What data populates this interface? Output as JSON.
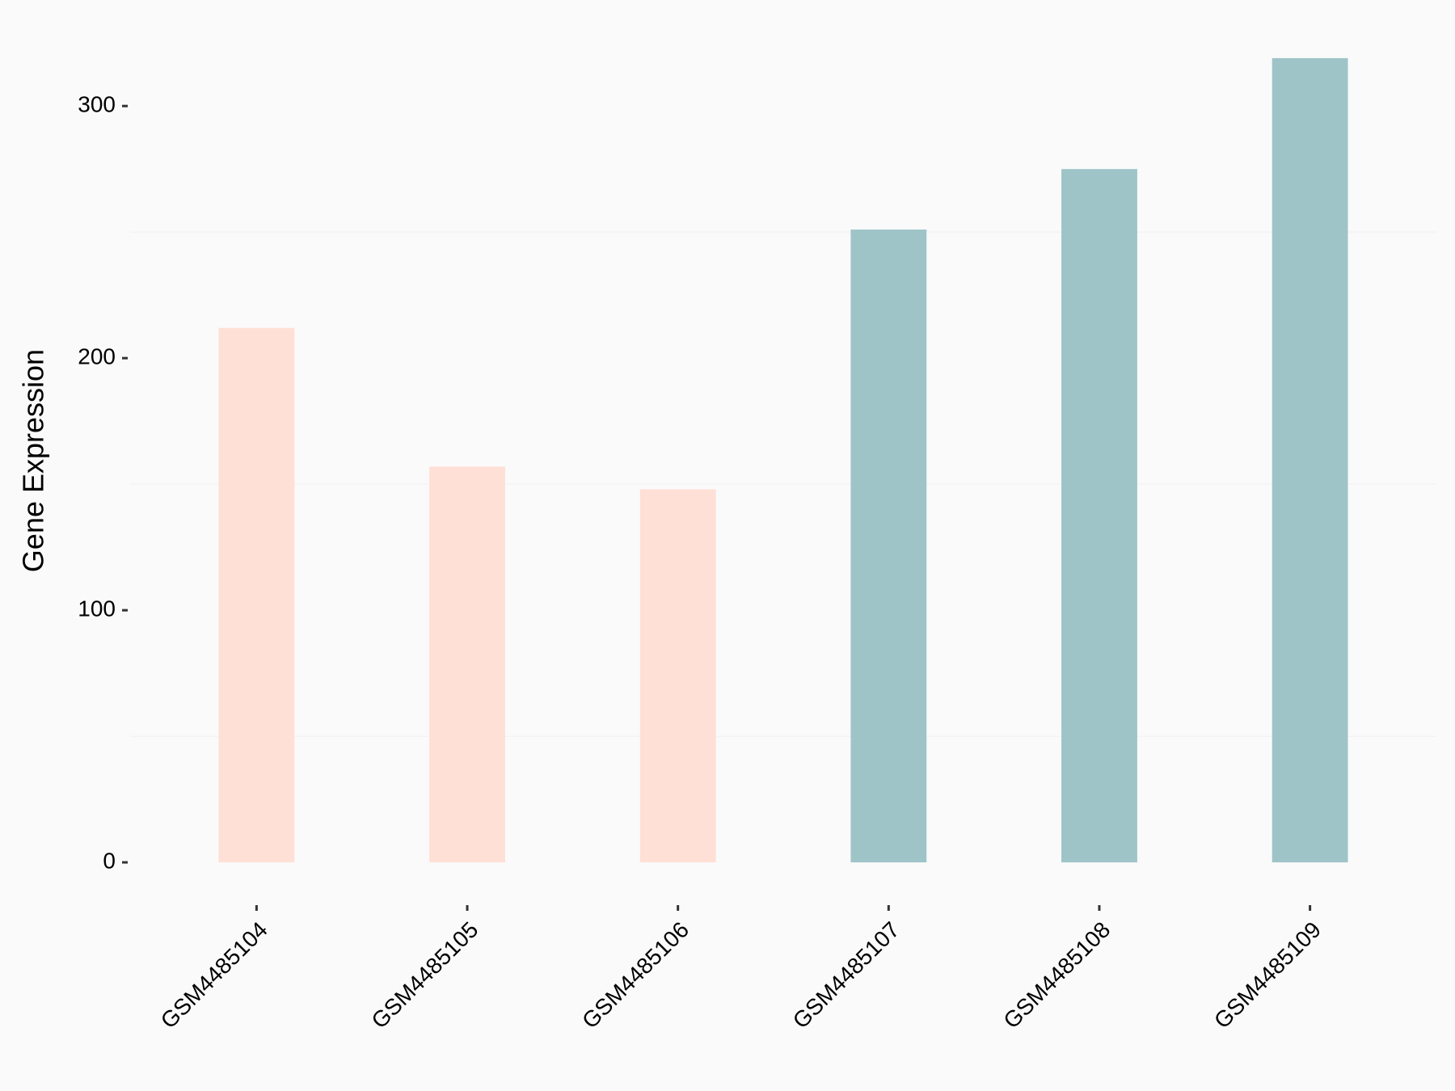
{
  "chart_data": {
    "type": "bar",
    "y_label": "Gene Expression",
    "categories": [
      "GSM4485104",
      "GSM4485105",
      "GSM4485106",
      "GSM4485107",
      "GSM4485108",
      "GSM4485109"
    ],
    "values": [
      212,
      157,
      148,
      251,
      275,
      319
    ],
    "colors": [
      "#FFE0D6",
      "#FFE0D6",
      "#FFE0D6",
      "#9EC4C8",
      "#9EC4C8",
      "#9EC4C8"
    ],
    "ylim": [
      -16,
      335
    ],
    "yticks": [
      0,
      100,
      200,
      300
    ],
    "minor_grid": [
      50,
      150,
      250
    ],
    "grid": true
  }
}
